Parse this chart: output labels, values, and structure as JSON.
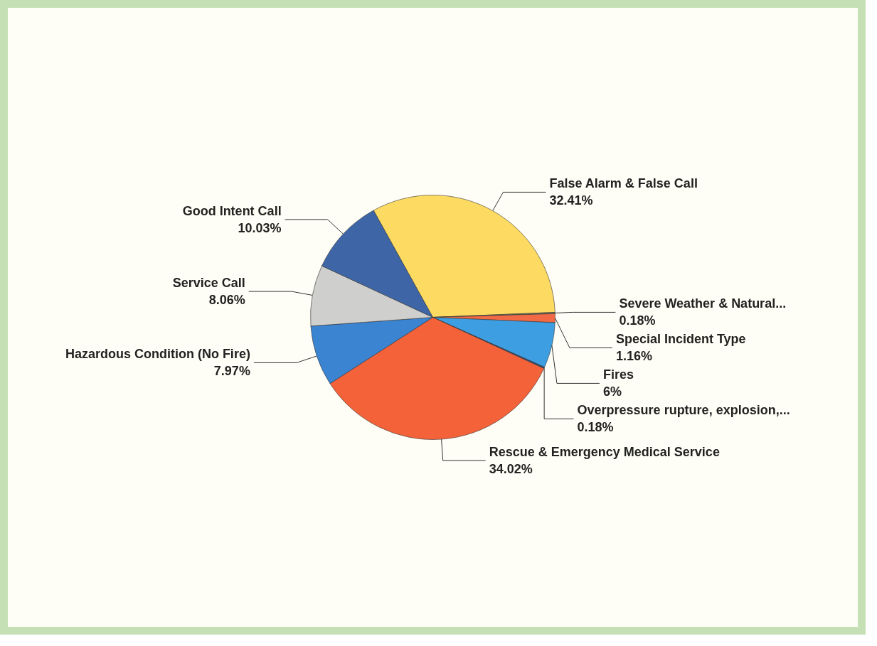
{
  "chart_data": {
    "type": "pie",
    "categories": [
      "False Alarm & False Call",
      "Severe Weather & Natural...",
      "Special Incident Type",
      "Fires",
      "Overpressure rupture, explosion,...",
      "Rescue & Emergency Medical Service",
      "Hazardous Condition (No Fire)",
      "Service Call",
      "Good Intent Call"
    ],
    "values": [
      32.41,
      0.18,
      1.16,
      6,
      0.18,
      34.02,
      7.97,
      8.06,
      10.03
    ],
    "value_labels": [
      "32.41%",
      "0.18%",
      "1.16%",
      "6%",
      "0.18%",
      "34.02%",
      "7.97%",
      "8.06%",
      "10.03%"
    ],
    "colors": [
      "#fddb63",
      "#7a7a5a",
      "#f26a45",
      "#3d9fe2",
      "#2f4f7f",
      "#f4623a",
      "#3a84d2",
      "#cfcfcd",
      "#3e66a6"
    ],
    "legend": false
  }
}
